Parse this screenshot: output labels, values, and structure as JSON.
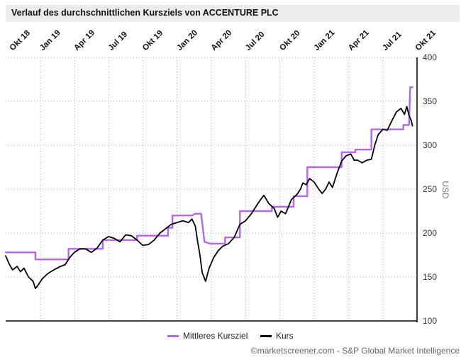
{
  "chart_data": {
    "type": "line",
    "title": "Verlauf des durchschnittlichen Kursziels von ACCENTURE PLC",
    "ylabel": "USD",
    "xlabel": "",
    "ylim": [
      100,
      400
    ],
    "yticks": [
      100,
      150,
      200,
      250,
      300,
      350,
      400
    ],
    "xlim_months": [
      0,
      36
    ],
    "xticks": [
      {
        "label": "Okt 18",
        "month": 0
      },
      {
        "label": "Jan 19",
        "month": 3
      },
      {
        "label": "Apr 19",
        "month": 6
      },
      {
        "label": "Jul 19",
        "month": 9
      },
      {
        "label": "Okt 19",
        "month": 12
      },
      {
        "label": "Jan 20",
        "month": 15
      },
      {
        "label": "Apr 20",
        "month": 18
      },
      {
        "label": "Jul 20",
        "month": 21
      },
      {
        "label": "Okt 20",
        "month": 24
      },
      {
        "label": "Jan 21",
        "month": 27
      },
      {
        "label": "Apr 21",
        "month": 30
      },
      {
        "label": "Jul 21",
        "month": 33
      },
      {
        "label": "Okt 21",
        "month": 36
      }
    ],
    "grid": true,
    "legend_position": "bottom",
    "series": [
      {
        "name": "Mittleres Kursziel",
        "color": "#b466f0",
        "step": true,
        "points": [
          [
            0.0,
            178
          ],
          [
            2.6,
            178
          ],
          [
            2.6,
            170
          ],
          [
            5.5,
            170
          ],
          [
            5.5,
            182
          ],
          [
            8.5,
            182
          ],
          [
            8.5,
            192
          ],
          [
            11.5,
            192
          ],
          [
            11.5,
            197
          ],
          [
            14.2,
            197
          ],
          [
            14.2,
            206
          ],
          [
            14.6,
            206
          ],
          [
            14.6,
            220
          ],
          [
            16.3,
            220
          ],
          [
            16.6,
            222
          ],
          [
            17.1,
            222
          ],
          [
            17.4,
            190
          ],
          [
            17.9,
            188
          ],
          [
            19.2,
            188
          ],
          [
            19.2,
            195
          ],
          [
            20.5,
            195
          ],
          [
            20.5,
            225
          ],
          [
            23.3,
            225
          ],
          [
            23.3,
            230
          ],
          [
            25.2,
            230
          ],
          [
            25.2,
            242
          ],
          [
            26.4,
            242
          ],
          [
            26.4,
            275
          ],
          [
            29.4,
            275
          ],
          [
            29.4,
            292
          ],
          [
            30.6,
            292
          ],
          [
            30.6,
            295
          ],
          [
            32.0,
            295
          ],
          [
            32.0,
            318
          ],
          [
            34.8,
            318
          ],
          [
            34.8,
            323
          ],
          [
            35.3,
            323
          ],
          [
            35.4,
            366
          ],
          [
            35.6,
            366
          ]
        ]
      },
      {
        "name": "Kurs",
        "color": "#000000",
        "step": false,
        "points": [
          [
            0.0,
            174
          ],
          [
            0.3,
            165
          ],
          [
            0.6,
            158
          ],
          [
            1.0,
            162
          ],
          [
            1.3,
            156
          ],
          [
            1.6,
            160
          ],
          [
            2.0,
            150
          ],
          [
            2.4,
            145
          ],
          [
            2.6,
            137
          ],
          [
            2.8,
            140
          ],
          [
            3.2,
            148
          ],
          [
            3.7,
            154
          ],
          [
            4.2,
            158
          ],
          [
            4.8,
            162
          ],
          [
            5.2,
            164
          ],
          [
            5.6,
            172
          ],
          [
            6.0,
            178
          ],
          [
            6.5,
            182
          ],
          [
            7.0,
            182
          ],
          [
            7.5,
            178
          ],
          [
            8.0,
            183
          ],
          [
            8.5,
            192
          ],
          [
            9.0,
            196
          ],
          [
            9.5,
            194
          ],
          [
            10.0,
            190
          ],
          [
            10.5,
            198
          ],
          [
            11.0,
            197
          ],
          [
            11.5,
            192
          ],
          [
            12.0,
            186
          ],
          [
            12.5,
            187
          ],
          [
            13.0,
            192
          ],
          [
            13.5,
            200
          ],
          [
            14.0,
            205
          ],
          [
            14.5,
            210
          ],
          [
            15.0,
            212
          ],
          [
            15.5,
            214
          ],
          [
            16.0,
            212
          ],
          [
            16.3,
            216
          ],
          [
            16.6,
            208
          ],
          [
            16.8,
            190
          ],
          [
            17.0,
            175
          ],
          [
            17.2,
            155
          ],
          [
            17.5,
            145
          ],
          [
            17.8,
            160
          ],
          [
            18.2,
            172
          ],
          [
            18.6,
            180
          ],
          [
            19.0,
            185
          ],
          [
            19.5,
            188
          ],
          [
            20.0,
            195
          ],
          [
            20.5,
            210
          ],
          [
            21.0,
            214
          ],
          [
            21.5,
            222
          ],
          [
            22.0,
            232
          ],
          [
            22.3,
            238
          ],
          [
            22.6,
            243
          ],
          [
            23.0,
            234
          ],
          [
            23.5,
            228
          ],
          [
            23.8,
            218
          ],
          [
            24.1,
            225
          ],
          [
            24.5,
            222
          ],
          [
            25.0,
            238
          ],
          [
            25.5,
            244
          ],
          [
            25.8,
            250
          ],
          [
            26.0,
            257
          ],
          [
            26.3,
            255
          ],
          [
            26.6,
            262
          ],
          [
            27.0,
            258
          ],
          [
            27.4,
            250
          ],
          [
            27.7,
            245
          ],
          [
            28.0,
            250
          ],
          [
            28.3,
            258
          ],
          [
            28.6,
            252
          ],
          [
            29.0,
            268
          ],
          [
            29.4,
            282
          ],
          [
            29.8,
            288
          ],
          [
            30.2,
            290
          ],
          [
            30.5,
            283
          ],
          [
            30.8,
            283
          ],
          [
            31.2,
            280
          ],
          [
            31.6,
            283
          ],
          [
            32.0,
            284
          ],
          [
            32.3,
            300
          ],
          [
            32.6,
            312
          ],
          [
            33.0,
            318
          ],
          [
            33.4,
            317
          ],
          [
            33.8,
            328
          ],
          [
            34.2,
            338
          ],
          [
            34.6,
            342
          ],
          [
            34.9,
            335
          ],
          [
            35.1,
            344
          ],
          [
            35.3,
            334
          ],
          [
            35.5,
            328
          ],
          [
            35.6,
            322
          ]
        ]
      }
    ]
  },
  "legend": {
    "target_label": "Mittleres Kursziel",
    "price_label": "Kurs"
  },
  "credit": "©marketscreener.com - S&P Global Market Intelligence",
  "colors": {
    "target": "#b466f0",
    "price": "#000000",
    "grid": "#b5b5b5",
    "axis": "#000000",
    "title_bg": "#ececec"
  }
}
